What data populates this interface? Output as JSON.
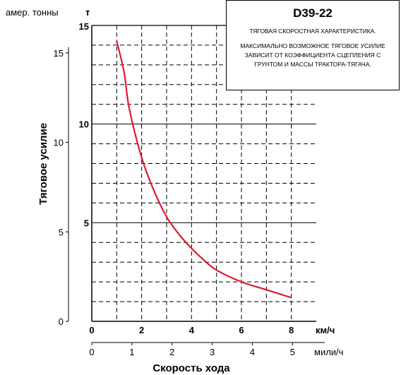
{
  "chart_data": {
    "type": "line",
    "model_label": "D39-22",
    "chart_caption": "ТЯГОВАЯ СКОРОСТНАЯ ХАРАКТЕРИСТИКА.",
    "description": "МАКСИМАЛЬНО ВОЗМОЖНОЕ ТЯГОВОЕ УСИЛИЕ ЗАВИСИТ ОТ КОЭФФИЦИЕНТА СЦЕПЛЕНИЯ С ГРУНТОМ И МАССЫ ТРАКТОРА-ТЯГАЧА.",
    "ylabel": "Тяговое усилие",
    "xlabel": "Скорость хода",
    "y_unit_metric": "т",
    "y_unit_us": "амер. тонны",
    "x_unit_metric": "км/ч",
    "x_unit_miles": "мили/ч",
    "x_range_kmh": [
      0,
      9
    ],
    "y_range_t": [
      0,
      15
    ],
    "y_ticks_metric": [
      "0",
      "5",
      "10",
      "15"
    ],
    "y_ticks_us": [
      "0",
      "5",
      "10",
      "15"
    ],
    "x_ticks_kmh": [
      "0",
      "2",
      "4",
      "6",
      "8"
    ],
    "x_ticks_mph": [
      "0",
      "1",
      "2",
      "3",
      "4",
      "5"
    ],
    "grid": true,
    "line_color": "#e0192c",
    "x": [
      1.0,
      1.3,
      1.5,
      2.0,
      2.5,
      3.0,
      3.5,
      4.0,
      4.5,
      5.0,
      6.0,
      7.0,
      8.0
    ],
    "y": [
      14.2,
      12.6,
      10.8,
      8.3,
      6.6,
      5.3,
      4.4,
      3.7,
      3.1,
      2.6,
      2.0,
      1.6,
      1.2
    ]
  }
}
